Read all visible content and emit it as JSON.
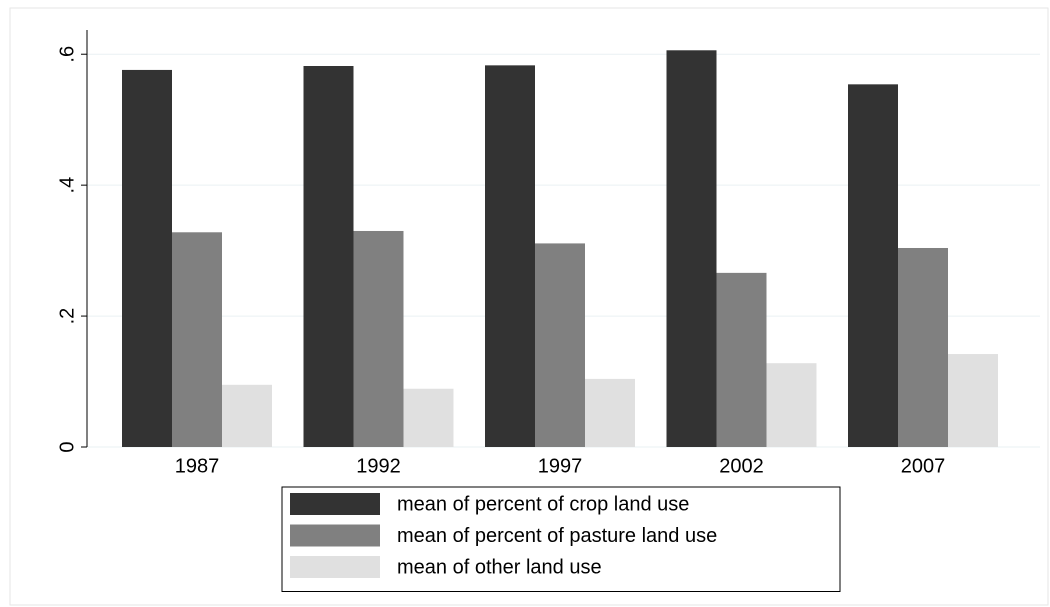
{
  "chart_data": {
    "type": "bar",
    "categories": [
      "1987",
      "1992",
      "1997",
      "2002",
      "2007"
    ],
    "series": [
      {
        "name": "mean of percent of crop land use",
        "color": "#333333",
        "values": [
          0.576,
          0.582,
          0.583,
          0.606,
          0.554
        ]
      },
      {
        "name": "mean of percent of pasture land use",
        "color": "#808080",
        "values": [
          0.328,
          0.33,
          0.311,
          0.266,
          0.304
        ]
      },
      {
        "name": "mean of other land use",
        "color": "#e0e0e0",
        "values": [
          0.095,
          0.089,
          0.104,
          0.128,
          0.142
        ]
      }
    ],
    "ylim": [
      0,
      0.637
    ],
    "yticks": [
      0,
      {
        "value": 0.2,
        "label": ".2"
      },
      {
        "value": 0.4,
        "label": ".4"
      },
      {
        "value": 0.6,
        "label": ".6"
      }
    ],
    "grid": true,
    "legend": "bottom"
  }
}
